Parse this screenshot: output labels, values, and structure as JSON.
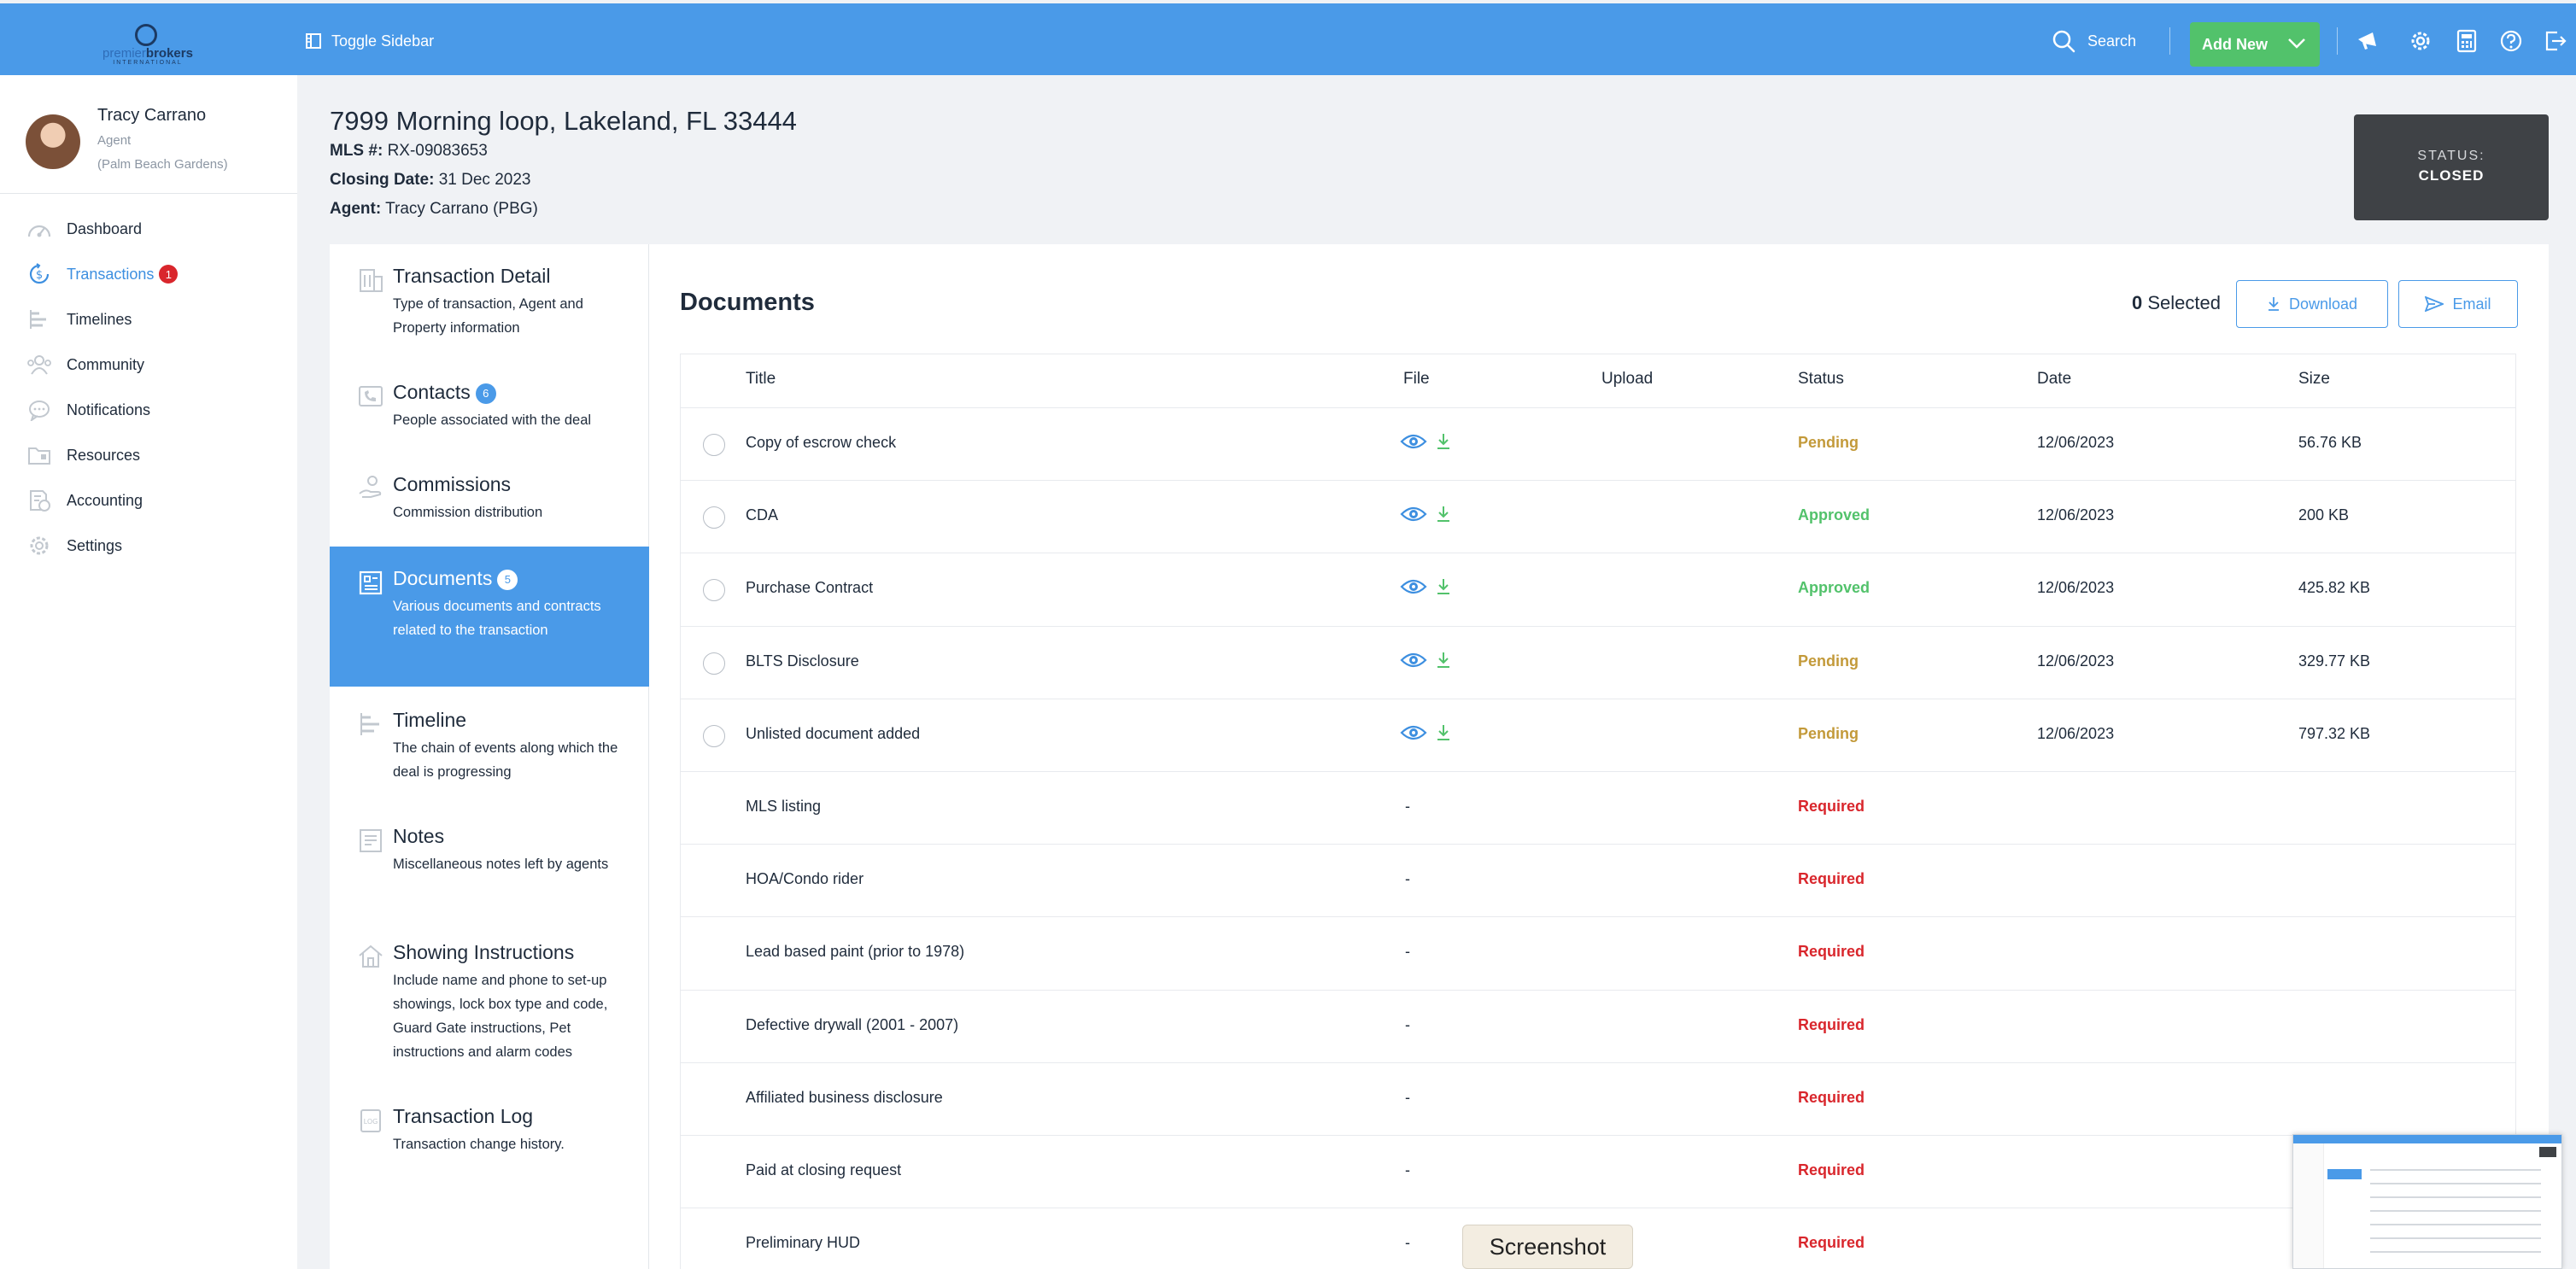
{
  "topbar": {
    "logo_name": "premierbrokers",
    "logo_light": "premier",
    "logo_bold": "brokers",
    "logo_tag": "INTERNATIONAL",
    "toggle_label": "Toggle Sidebar",
    "search_label": "Search",
    "add_new_label": "Add New",
    "icons": [
      "announcement-icon",
      "gear-icon",
      "calculator-icon",
      "help-icon",
      "logout-icon"
    ]
  },
  "user": {
    "name": "Tracy Carrano",
    "role": "Agent",
    "office": "(Palm Beach Gardens)"
  },
  "sidebar": {
    "items": [
      {
        "label": "Dashboard",
        "icon": "dashboard-icon"
      },
      {
        "label": "Transactions",
        "icon": "dollar-circle-icon",
        "badge": "1",
        "active": true
      },
      {
        "label": "Timelines",
        "icon": "timeline-icon"
      },
      {
        "label": "Community",
        "icon": "community-icon"
      },
      {
        "label": "Notifications",
        "icon": "chat-bubble-icon"
      },
      {
        "label": "Resources",
        "icon": "folder-icon"
      },
      {
        "label": "Accounting",
        "icon": "accounting-icon"
      },
      {
        "label": "Settings",
        "icon": "gear-icon"
      }
    ]
  },
  "property": {
    "address": "7999 Morning loop, Lakeland, FL 33444",
    "mls_label": "MLS #:",
    "mls": "RX-09083653",
    "closing_label": "Closing Date:",
    "closing_date": "31 Dec 2023",
    "agent_label": "Agent:",
    "agent": "Tracy Carrano (PBG)"
  },
  "status": {
    "label": "STATUS:",
    "value": "CLOSED"
  },
  "tabs": [
    {
      "title": "Transaction Detail",
      "desc": "Type of transaction, Agent and Property information",
      "icon": "building-icon"
    },
    {
      "title": "Contacts",
      "badge": "6",
      "desc": "People associated with the deal",
      "icon": "phone-icon"
    },
    {
      "title": "Commissions",
      "desc": "Commission distribution",
      "icon": "hand-coin-icon"
    },
    {
      "title": "Documents",
      "badge": "5",
      "desc": "Various documents and contracts related to the transaction",
      "icon": "document-icon",
      "active": true
    },
    {
      "title": "Timeline",
      "desc": "The chain of events along which the deal is progressing",
      "icon": "timeline-icon"
    },
    {
      "title": "Notes",
      "desc": "Miscellaneous notes left by agents",
      "icon": "notes-icon"
    },
    {
      "title": "Showing Instructions",
      "desc": "Include name and phone to set-up showings, lock box type and code, Guard Gate instructions, Pet instructions and alarm codes",
      "icon": "house-icon"
    },
    {
      "title": "Transaction Log",
      "desc": "Transaction change history.",
      "icon": "log-icon"
    }
  ],
  "documents": {
    "title": "Documents",
    "selected_count": "0",
    "selected_label": "Selected",
    "download_label": "Download",
    "email_label": "Email",
    "columns": [
      "Title",
      "File",
      "Upload",
      "Status",
      "Date",
      "Size"
    ],
    "rows": [
      {
        "title": "Copy of escrow check",
        "has_file": true,
        "status": "Pending",
        "date": "12/06/2023",
        "size": "56.76 KB"
      },
      {
        "title": "CDA",
        "has_file": true,
        "status": "Approved",
        "date": "12/06/2023",
        "size": "200 KB"
      },
      {
        "title": "Purchase Contract",
        "has_file": true,
        "status": "Approved",
        "date": "12/06/2023",
        "size": "425.82 KB"
      },
      {
        "title": "BLTS Disclosure",
        "has_file": true,
        "status": "Pending",
        "date": "12/06/2023",
        "size": "329.77 KB"
      },
      {
        "title": "Unlisted document added",
        "has_file": true,
        "status": "Pending",
        "date": "12/06/2023",
        "size": "797.32 KB"
      },
      {
        "title": "MLS listing",
        "has_file": false,
        "file": "-",
        "status": "Required",
        "date": "",
        "size": ""
      },
      {
        "title": "HOA/Condo rider",
        "has_file": false,
        "file": "-",
        "status": "Required",
        "date": "",
        "size": ""
      },
      {
        "title": "Lead based paint (prior to 1978)",
        "has_file": false,
        "file": "-",
        "status": "Required",
        "date": "",
        "size": ""
      },
      {
        "title": "Defective drywall (2001 - 2007)",
        "has_file": false,
        "file": "-",
        "status": "Required",
        "date": "",
        "size": ""
      },
      {
        "title": "Affiliated business disclosure",
        "has_file": false,
        "file": "-",
        "status": "Required",
        "date": "",
        "size": ""
      },
      {
        "title": "Paid at closing request",
        "has_file": false,
        "file": "-",
        "status": "Required",
        "date": "",
        "size": ""
      },
      {
        "title": "Preliminary HUD",
        "has_file": false,
        "file": "-",
        "status": "Required",
        "date": "",
        "size": ""
      }
    ]
  },
  "overlay": {
    "screenshot_label": "Screenshot"
  },
  "colors": {
    "primary": "#4a9ae8",
    "success": "#52c26b",
    "pending": "#c39a3a",
    "required": "#d9262c",
    "status_box": "#3f4246"
  }
}
